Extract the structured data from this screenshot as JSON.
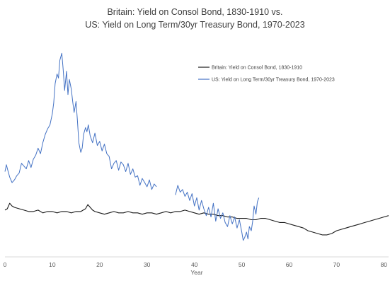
{
  "chart_data": {
    "type": "line",
    "title_line1": "Britain: Yield on Consol Bond, 1830-1910 vs.",
    "title_line2": "US: Yield on Long Term/30yr Treasury Bond, 1970-2023",
    "xlabel": "Year",
    "ylabel": "",
    "xlim": [
      0,
      81
    ],
    "ylim": [
      0,
      16
    ],
    "xticks": [
      "0",
      "10",
      "20",
      "30",
      "40",
      "50",
      "60",
      "70",
      "80"
    ],
    "grid": false,
    "legend_position": "top-right",
    "series": [
      {
        "name": "Britain: Yield on Consol Bond, 1830-1910",
        "color": "#1a1a1a",
        "x": [
          0,
          0.5,
          1,
          1.5,
          2,
          3,
          4,
          5,
          6,
          7,
          8,
          9,
          10,
          11,
          12,
          13,
          14,
          15,
          16,
          17,
          17.5,
          18,
          18.5,
          19,
          20,
          21,
          22,
          23,
          24,
          25,
          26,
          27,
          28,
          29,
          30,
          31,
          32,
          33,
          34,
          35,
          36,
          37,
          38,
          39,
          40,
          41,
          42,
          43,
          44,
          45,
          46,
          47,
          48,
          49,
          50,
          51,
          52,
          53,
          54,
          55,
          56,
          57,
          58,
          59,
          60,
          61,
          62,
          63,
          64,
          65,
          66,
          67,
          68,
          69,
          70,
          71,
          72,
          73,
          74,
          75,
          76,
          77,
          78,
          79,
          80,
          81
        ],
        "values": [
          3.4,
          3.5,
          3.9,
          3.7,
          3.6,
          3.5,
          3.4,
          3.3,
          3.3,
          3.4,
          3.2,
          3.3,
          3.3,
          3.2,
          3.3,
          3.3,
          3.2,
          3.3,
          3.3,
          3.5,
          3.8,
          3.6,
          3.4,
          3.3,
          3.2,
          3.1,
          3.2,
          3.3,
          3.2,
          3.2,
          3.3,
          3.2,
          3.2,
          3.1,
          3.2,
          3.2,
          3.1,
          3.2,
          3.3,
          3.2,
          3.3,
          3.3,
          3.4,
          3.3,
          3.2,
          3.1,
          3.2,
          3.1,
          3.1,
          3.0,
          3.0,
          2.9,
          2.9,
          2.8,
          2.8,
          2.8,
          2.7,
          2.7,
          2.8,
          2.8,
          2.7,
          2.6,
          2.5,
          2.5,
          2.4,
          2.3,
          2.2,
          2.1,
          1.9,
          1.8,
          1.7,
          1.6,
          1.6,
          1.7,
          1.9,
          2.0,
          2.1,
          2.2,
          2.3,
          2.4,
          2.5,
          2.6,
          2.7,
          2.8,
          2.9,
          3.0
        ]
      },
      {
        "name": "US: Yield on Long Term/30yr Treasury Bond, 1970-2023",
        "color": "#4472c4",
        "x": [
          0,
          0.3,
          0.6,
          1,
          1.5,
          2,
          2.5,
          3,
          3.5,
          4,
          4.5,
          5,
          5.5,
          6,
          6.5,
          7,
          7.5,
          8,
          8.5,
          9,
          9.5,
          10,
          10.3,
          10.6,
          11,
          11.3,
          11.6,
          12,
          12.3,
          12.6,
          13,
          13.3,
          13.6,
          14,
          14.3,
          14.6,
          15,
          15.3,
          15.6,
          16,
          16.3,
          16.6,
          17,
          17.3,
          17.6,
          18,
          18.5,
          19,
          19.5,
          20,
          20.5,
          21,
          21.5,
          22,
          22.5,
          23,
          23.5,
          24,
          24.5,
          25,
          25.5,
          26,
          26.5,
          27,
          27.5,
          28,
          28.5,
          29,
          29.5,
          30,
          30.5,
          31,
          31.5,
          32,
          null,
          36,
          36.5,
          37,
          37.5,
          38,
          38.5,
          39,
          39.5,
          40,
          40.5,
          41,
          41.5,
          42,
          42.5,
          43,
          43.5,
          44,
          44.5,
          45,
          45.5,
          46,
          46.5,
          47,
          47.5,
          48,
          48.5,
          49,
          49.5,
          50,
          50.3,
          50.6,
          51,
          51.3,
          51.6,
          52,
          52.3,
          52.6,
          53,
          53.3,
          53.6
        ],
        "values": [
          6.2,
          6.7,
          6.3,
          5.8,
          5.4,
          5.6,
          5.9,
          6.1,
          6.8,
          6.6,
          6.4,
          7.0,
          6.5,
          7.1,
          7.4,
          7.9,
          7.5,
          8.3,
          8.9,
          9.3,
          9.6,
          10.4,
          11.2,
          12.6,
          13.3,
          13.0,
          14.3,
          14.8,
          13.6,
          12.1,
          13.5,
          11.8,
          12.9,
          12.2,
          11.3,
          10.5,
          11.3,
          9.9,
          8.3,
          7.6,
          7.9,
          8.9,
          9.4,
          9.1,
          9.6,
          8.8,
          8.3,
          9.0,
          8.1,
          8.4,
          7.7,
          8.2,
          7.5,
          7.3,
          6.4,
          6.8,
          7.0,
          6.3,
          6.9,
          6.7,
          6.2,
          6.8,
          6.0,
          6.4,
          5.8,
          5.9,
          5.2,
          5.7,
          5.4,
          5.1,
          5.6,
          4.9,
          5.3,
          5.1,
          null,
          4.5,
          5.2,
          4.7,
          4.9,
          4.4,
          4.7,
          4.1,
          4.6,
          3.7,
          4.3,
          3.4,
          4.1,
          3.5,
          3.0,
          3.6,
          2.9,
          3.9,
          2.6,
          3.5,
          2.8,
          3.2,
          2.5,
          2.2,
          3.0,
          2.4,
          2.9,
          2.1,
          2.7,
          1.8,
          1.2,
          1.4,
          1.8,
          1.3,
          2.2,
          1.9,
          2.6,
          3.7,
          3.1,
          4.0,
          4.3
        ]
      }
    ]
  }
}
